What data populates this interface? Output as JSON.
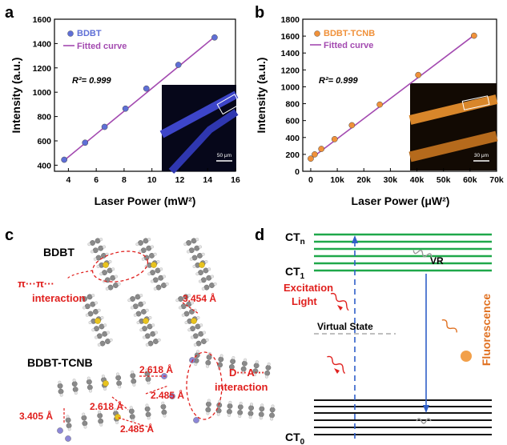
{
  "panel_labels": {
    "a": "a",
    "b": "b",
    "c": "c",
    "d": "d"
  },
  "chart_data": [
    {
      "type": "scatter",
      "xlabel": "Laser Power (mW²)",
      "ylabel": "Intensity (a.u.)",
      "xlim": [
        3,
        16
      ],
      "ylim": [
        350,
        1600
      ],
      "xticks": [
        "4",
        "6",
        "8",
        "10",
        "12",
        "14",
        "16"
      ],
      "xtick_values": [
        4,
        6,
        8,
        10,
        12,
        14,
        16
      ],
      "yticks": [
        "400",
        "600",
        "800",
        "1000",
        "1200",
        "1400",
        "1600"
      ],
      "ytick_values": [
        400,
        600,
        800,
        1000,
        1200,
        1400,
        1600
      ],
      "legend": [
        "BDBT",
        "Fitted curve"
      ],
      "annotation": "R²= 0.999",
      "scale_bar": "50 μm",
      "points": [
        [
          3.7,
          445
        ],
        [
          5.2,
          585
        ],
        [
          6.6,
          715
        ],
        [
          8.1,
          865
        ],
        [
          9.6,
          1030
        ],
        [
          11.9,
          1225
        ],
        [
          14.5,
          1450
        ]
      ],
      "fit": [
        [
          3.7,
          440
        ],
        [
          14.5,
          1455
        ]
      ],
      "colors": {
        "points": "#5f6fd6",
        "fit": "#a34ab0"
      }
    },
    {
      "type": "scatter",
      "xlabel": "Laser Power (μW²)",
      "ylabel": "Intensity (a.u.)",
      "xlim": [
        -3000,
        70000
      ],
      "ylim": [
        0,
        1800
      ],
      "xticks": [
        "0",
        "10k",
        "20k",
        "30k",
        "40k",
        "50k",
        "60k",
        "70k"
      ],
      "xtick_values": [
        0,
        10000,
        20000,
        30000,
        40000,
        50000,
        60000,
        70000
      ],
      "yticks": [
        "0",
        "200",
        "400",
        "600",
        "800",
        "1000",
        "1200",
        "1400",
        "1600",
        "1800"
      ],
      "ytick_values": [
        0,
        200,
        400,
        600,
        800,
        1000,
        1200,
        1400,
        1600,
        1800
      ],
      "legend": [
        "BDBT-TCNB",
        "Fitted curve"
      ],
      "annotation": "R²= 0.999",
      "scale_bar": "30 μm",
      "points": [
        [
          0,
          150
        ],
        [
          1500,
          200
        ],
        [
          4000,
          265
        ],
        [
          9000,
          380
        ],
        [
          15500,
          545
        ],
        [
          26000,
          790
        ],
        [
          40500,
          1140
        ],
        [
          61500,
          1605
        ]
      ],
      "fit": [
        [
          0,
          148
        ],
        [
          61500,
          1610
        ]
      ],
      "colors": {
        "points": "#f0913a",
        "fit": "#a34ab0"
      }
    }
  ],
  "panel_c": {
    "title_top": "BDBT",
    "interaction_top_1": "π···π···",
    "interaction_top_2": "interaction",
    "dist_top": "3.454 Å",
    "title_bottom": "BDBT-TCNB",
    "d1": "2.618 Å",
    "d2": "2.485 Å",
    "d3": "2.618 Å",
    "d4": "3.405 Å",
    "d5": "2.485 Å",
    "da_1": "D···A···",
    "da_2": "interaction"
  },
  "panel_d": {
    "ctn": "CT",
    "ctn_sub": "n",
    "ct1": "CT",
    "ct1_sub": "1",
    "ct0": "CT",
    "ct0_sub": "0",
    "vr": "VR",
    "excitation_1": "Excitation",
    "excitation_2": "Light",
    "virtual_state": "Virtual State",
    "fluorescence": "Fluorescence"
  }
}
